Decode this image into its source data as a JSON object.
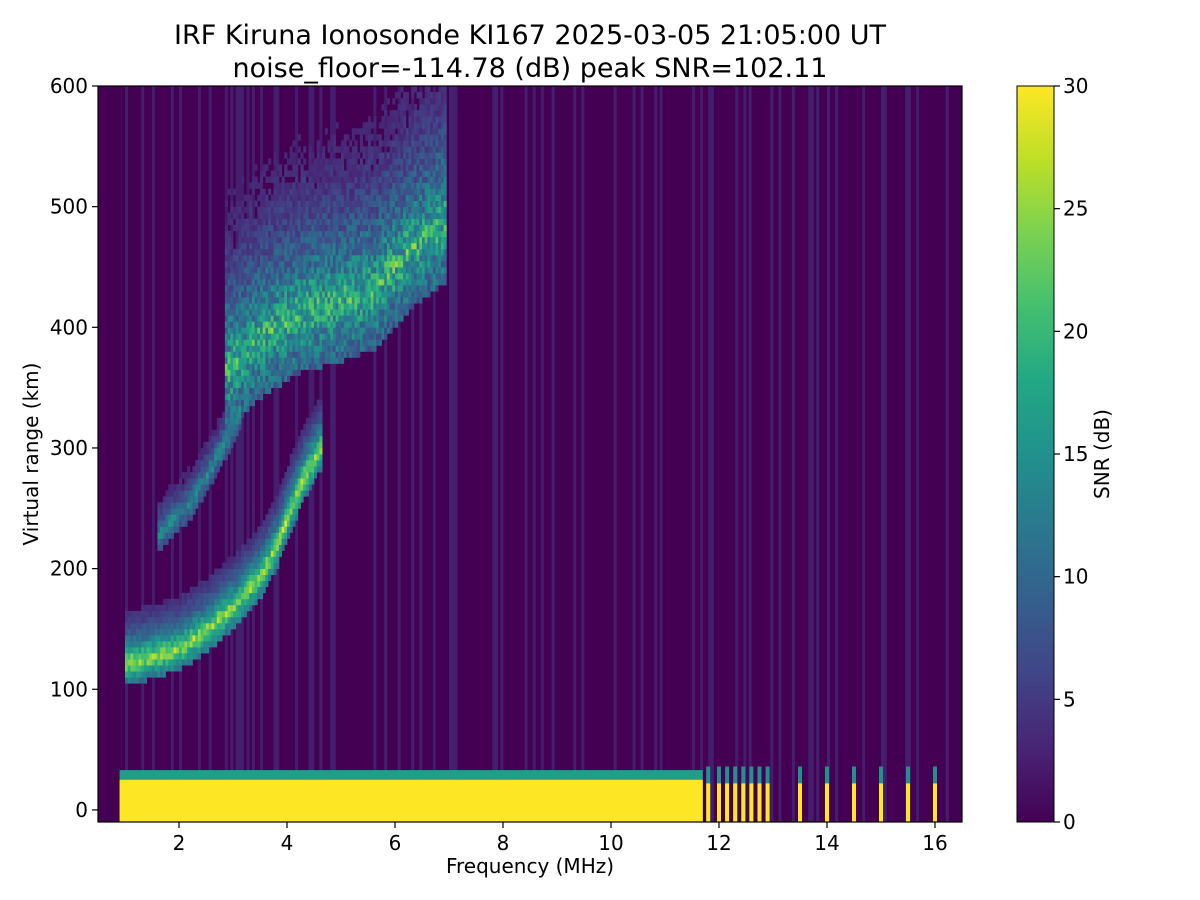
{
  "chart_data": {
    "type": "heatmap",
    "title": "IRF Kiruna Ionosonde KI167 2025-03-05 21:05:00  UT",
    "subtitle": "noise_floor=-114.78 (dB) peak SNR=102.11",
    "xlabel": "Frequency (MHz)",
    "ylabel": "Virtual range (km)",
    "xlim": [
      0.5,
      16.5
    ],
    "ylim": [
      -10,
      600
    ],
    "xticks": [
      2,
      4,
      6,
      8,
      10,
      12,
      14,
      16
    ],
    "yticks": [
      0,
      100,
      200,
      300,
      400,
      500,
      600
    ],
    "data_freq_range_mhz": [
      0.9,
      16.4
    ],
    "colormap": "viridis",
    "colorbar": {
      "label": "SNR (dB)",
      "range": [
        0,
        30
      ],
      "ticks": [
        0,
        5,
        10,
        15,
        20,
        25,
        30
      ]
    },
    "features": {
      "ground_clutter": {
        "range_km": [
          0,
          25
        ],
        "freq_mhz": [
          0.9,
          11.7
        ],
        "snr_db": 30
      },
      "discrete_carriers_mhz": [
        11.8,
        12.0,
        12.15,
        12.3,
        12.45,
        12.6,
        12.75,
        12.9,
        13.5,
        14.0,
        14.5,
        15.0,
        15.5,
        16.0
      ],
      "first_hop_trace": [
        [
          1.0,
          108
        ],
        [
          1.5,
          112
        ],
        [
          2.0,
          120
        ],
        [
          2.5,
          135
        ],
        [
          3.0,
          155
        ],
        [
          3.5,
          180
        ],
        [
          3.8,
          205
        ],
        [
          4.0,
          230
        ],
        [
          4.3,
          262
        ],
        [
          4.6,
          285
        ]
      ],
      "second_hop_trace": [
        [
          1.6,
          218
        ],
        [
          2.2,
          245
        ],
        [
          2.6,
          275
        ],
        [
          2.9,
          300
        ],
        [
          3.1,
          320
        ]
      ],
      "multi_hop_cloud": [
        [
          2.8,
          340
        ],
        [
          3.5,
          370
        ],
        [
          4.2,
          390
        ],
        [
          5.0,
          400
        ],
        [
          5.6,
          410
        ],
        [
          6.2,
          440
        ],
        [
          6.9,
          465
        ]
      ]
    }
  }
}
